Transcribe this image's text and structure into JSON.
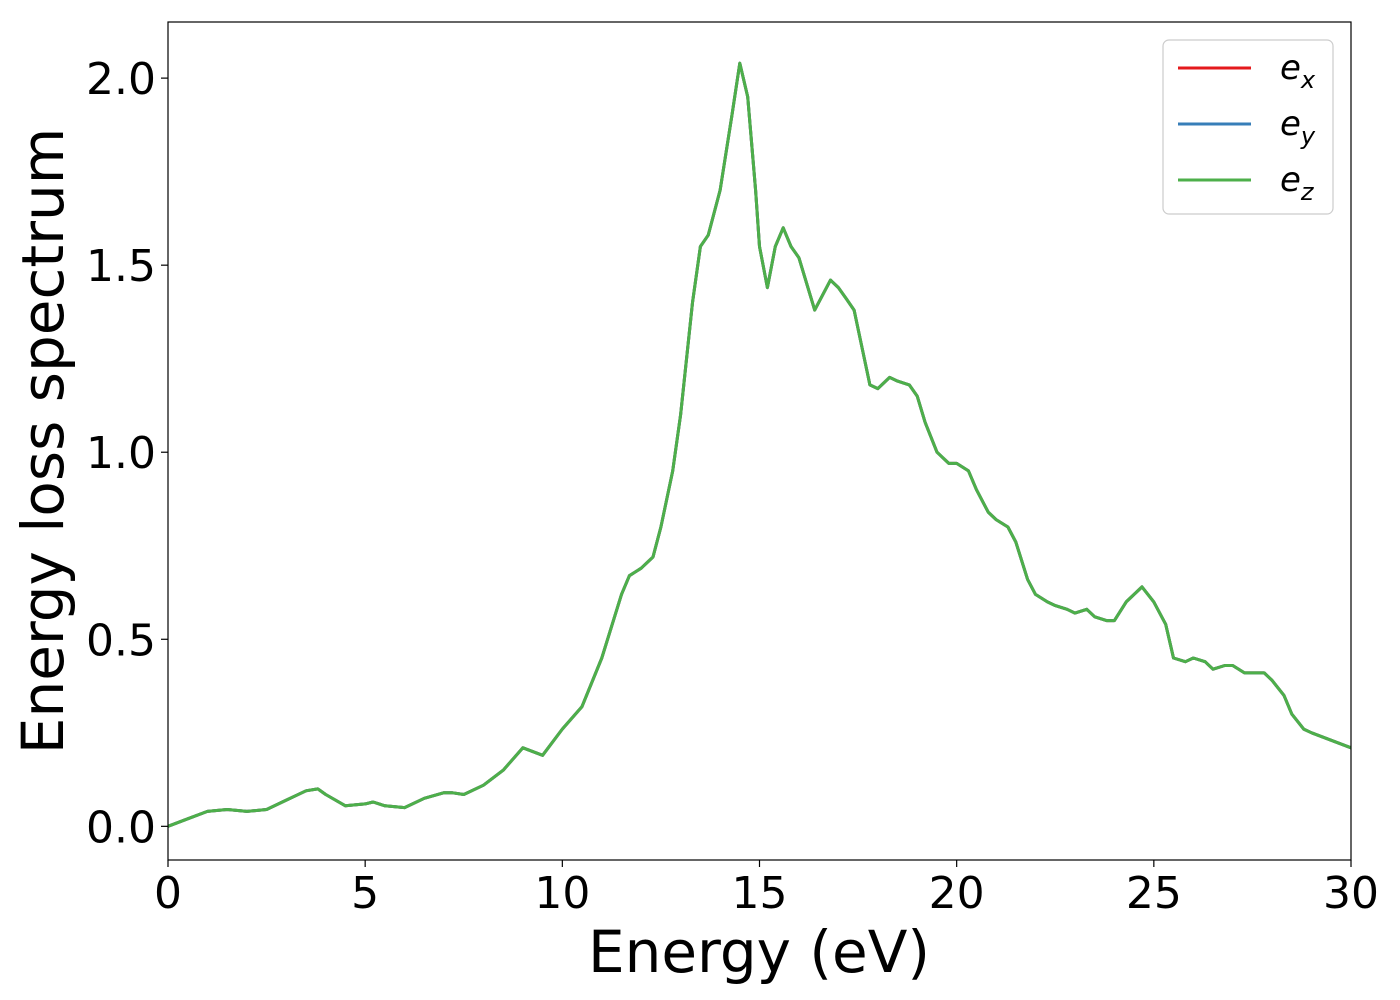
{
  "chart_data": {
    "type": "line",
    "xlabel": "Energy (eV)",
    "ylabel": "Energy loss spectrum",
    "xlim": [
      0,
      30
    ],
    "ylim": [
      -0.09,
      2.15
    ],
    "xticks": [
      0,
      5,
      10,
      15,
      20,
      25,
      30
    ],
    "xtick_labels": [
      "0",
      "5",
      "10",
      "15",
      "20",
      "25",
      "30"
    ],
    "yticks": [
      0.0,
      0.5,
      1.0,
      1.5,
      2.0
    ],
    "ytick_labels": [
      "0.0",
      "0.5",
      "1.0",
      "1.5",
      "2.0"
    ],
    "grid": false,
    "legend_position": "top-right",
    "x": [
      0,
      0.5,
      1.0,
      1.5,
      2.0,
      2.5,
      3.0,
      3.5,
      3.8,
      4.0,
      4.5,
      5.0,
      5.2,
      5.5,
      6.0,
      6.5,
      7.0,
      7.2,
      7.5,
      8.0,
      8.5,
      9.0,
      9.5,
      10.0,
      10.5,
      11.0,
      11.5,
      11.7,
      12.0,
      12.3,
      12.5,
      12.8,
      13.0,
      13.3,
      13.5,
      13.7,
      14.0,
      14.3,
      14.5,
      14.7,
      14.9,
      15.0,
      15.2,
      15.4,
      15.6,
      15.8,
      16.0,
      16.2,
      16.4,
      16.6,
      16.8,
      17.0,
      17.2,
      17.4,
      17.6,
      17.8,
      18.0,
      18.3,
      18.5,
      18.8,
      19.0,
      19.2,
      19.5,
      19.8,
      20.0,
      20.3,
      20.5,
      20.8,
      21.0,
      21.3,
      21.5,
      21.8,
      22.0,
      22.3,
      22.5,
      22.8,
      23.0,
      23.3,
      23.5,
      23.8,
      24.0,
      24.3,
      24.7,
      25.0,
      25.3,
      25.5,
      25.8,
      26.0,
      26.3,
      26.5,
      26.8,
      27.0,
      27.3,
      27.5,
      27.8,
      28.0,
      28.3,
      28.5,
      28.8,
      29.0,
      29.5,
      30.0
    ],
    "series": [
      {
        "name": "e_x",
        "color": "#e41a1c"
      },
      {
        "name": "e_y",
        "color": "#377eb8"
      },
      {
        "name": "e_z",
        "color": "#4daf4a"
      }
    ],
    "values": [
      0.0,
      0.02,
      0.04,
      0.045,
      0.04,
      0.045,
      0.07,
      0.095,
      0.1,
      0.085,
      0.055,
      0.06,
      0.065,
      0.055,
      0.05,
      0.075,
      0.09,
      0.09,
      0.085,
      0.11,
      0.15,
      0.21,
      0.19,
      0.26,
      0.32,
      0.45,
      0.62,
      0.67,
      0.69,
      0.72,
      0.8,
      0.95,
      1.1,
      1.4,
      1.55,
      1.58,
      1.7,
      1.9,
      2.04,
      1.95,
      1.7,
      1.55,
      1.44,
      1.55,
      1.6,
      1.55,
      1.52,
      1.45,
      1.38,
      1.42,
      1.46,
      1.44,
      1.41,
      1.38,
      1.28,
      1.18,
      1.17,
      1.2,
      1.19,
      1.18,
      1.15,
      1.08,
      1.0,
      0.97,
      0.97,
      0.95,
      0.9,
      0.84,
      0.82,
      0.8,
      0.76,
      0.66,
      0.62,
      0.6,
      0.59,
      0.58,
      0.57,
      0.58,
      0.56,
      0.55,
      0.55,
      0.6,
      0.64,
      0.6,
      0.54,
      0.45,
      0.44,
      0.45,
      0.44,
      0.42,
      0.43,
      0.43,
      0.41,
      0.41,
      0.41,
      0.39,
      0.35,
      0.3,
      0.26,
      0.25,
      0.23,
      0.21
    ]
  }
}
